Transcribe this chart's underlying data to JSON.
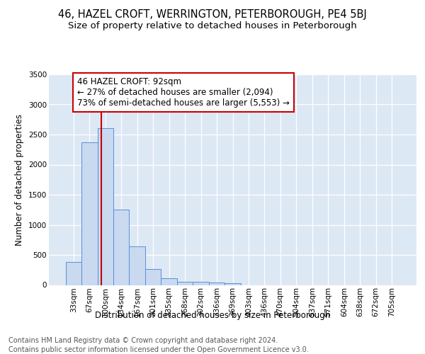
{
  "title1": "46, HAZEL CROFT, WERRINGTON, PETERBOROUGH, PE4 5BJ",
  "title2": "Size of property relative to detached houses in Peterborough",
  "xlabel": "Distribution of detached houses by size in Peterborough",
  "ylabel": "Number of detached properties",
  "footer1": "Contains HM Land Registry data © Crown copyright and database right 2024.",
  "footer2": "Contains public sector information licensed under the Open Government Licence v3.0.",
  "annotation_line1": "46 HAZEL CROFT: 92sqm",
  "annotation_line2": "← 27% of detached houses are smaller (2,094)",
  "annotation_line3": "73% of semi-detached houses are larger (5,553) →",
  "bar_labels": [
    "33sqm",
    "67sqm",
    "100sqm",
    "134sqm",
    "167sqm",
    "201sqm",
    "235sqm",
    "268sqm",
    "302sqm",
    "336sqm",
    "369sqm",
    "403sqm",
    "436sqm",
    "470sqm",
    "504sqm",
    "537sqm",
    "571sqm",
    "604sqm",
    "638sqm",
    "672sqm",
    "705sqm"
  ],
  "bar_values": [
    380,
    2375,
    2600,
    1250,
    640,
    260,
    110,
    55,
    50,
    40,
    30,
    0,
    0,
    0,
    0,
    0,
    0,
    0,
    0,
    0,
    0
  ],
  "bar_color": "#c8d9f0",
  "bar_edge_color": "#5b8fd4",
  "vline_color": "#cc0000",
  "ylim": [
    0,
    3500
  ],
  "yticks": [
    0,
    500,
    1000,
    1500,
    2000,
    2500,
    3000,
    3500
  ],
  "bg_color": "#dde8f5",
  "annotation_box_color": "#cc0000",
  "title1_fontsize": 10.5,
  "title2_fontsize": 9.5,
  "footer_fontsize": 7.0,
  "axis_label_fontsize": 8.5,
  "tick_fontsize": 7.5
}
